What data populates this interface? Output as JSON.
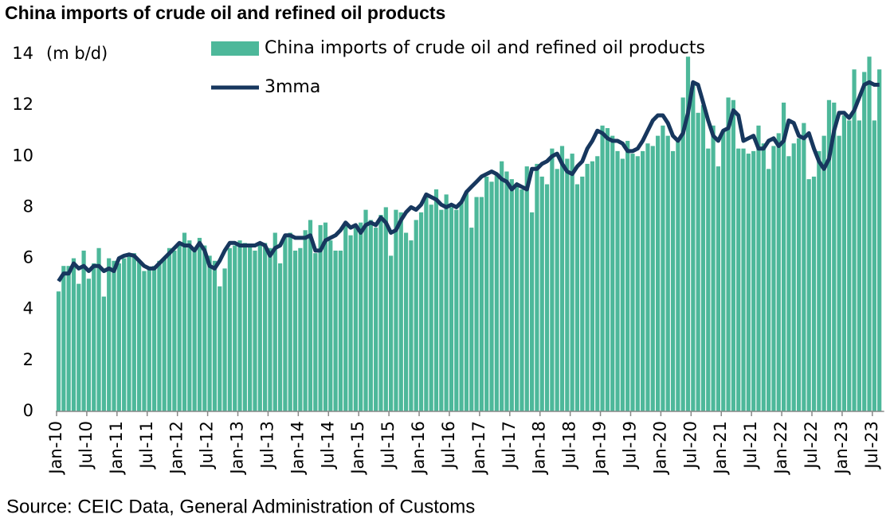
{
  "chart_data": {
    "type": "bar",
    "title": "China imports of crude oil and refined oil products",
    "y_axis_label": "(m b/d)",
    "source": "Source: CEIC Data, General Administration of Customs",
    "categories": [
      "Jan-10",
      null,
      null,
      null,
      null,
      null,
      "Jul-10",
      null,
      null,
      null,
      null,
      null,
      "Jan-11",
      null,
      null,
      null,
      null,
      null,
      "Jul-11",
      null,
      null,
      null,
      null,
      null,
      "Jan-12",
      null,
      null,
      null,
      null,
      null,
      "Jul-12",
      null,
      null,
      null,
      null,
      null,
      "Jan-13",
      null,
      null,
      null,
      null,
      null,
      "Jul-13",
      null,
      null,
      null,
      null,
      null,
      "Jan-14",
      null,
      null,
      null,
      null,
      null,
      "Jul-14",
      null,
      null,
      null,
      null,
      null,
      "Jan-15",
      null,
      null,
      null,
      null,
      null,
      "Jul-15",
      null,
      null,
      null,
      null,
      null,
      "Jan-16",
      null,
      null,
      null,
      null,
      null,
      "Jul-16",
      null,
      null,
      null,
      null,
      null,
      "Jan-17",
      null,
      null,
      null,
      null,
      null,
      "Jul-17",
      null,
      null,
      null,
      null,
      null,
      "Jan-18",
      null,
      null,
      null,
      null,
      null,
      "Jul-18",
      null,
      null,
      null,
      null,
      null,
      "Jan-19",
      null,
      null,
      null,
      null,
      null,
      "Jul-19",
      null,
      null,
      null,
      null,
      null,
      "Jan-20",
      null,
      null,
      null,
      null,
      null,
      "Jul-20",
      null,
      null,
      null,
      null,
      null,
      "Jan-21",
      null,
      null,
      null,
      null,
      null,
      "Jul-21",
      null,
      null,
      null,
      null,
      null,
      "Jan-22",
      null,
      null,
      null,
      null,
      null,
      "Jul-22",
      null,
      null,
      null,
      null,
      null,
      "Jan-23",
      null,
      null,
      null,
      null,
      null,
      "Jul-23",
      null
    ],
    "series": [
      {
        "name": "China imports of crude oil and refined oil products",
        "type": "bar",
        "color": "#4db89a",
        "values": [
          4.7,
          5.7,
          5.7,
          6.0,
          5.0,
          6.3,
          5.2,
          5.8,
          6.4,
          4.5,
          6.0,
          5.9,
          5.8,
          6.0,
          6.1,
          6.2,
          5.9,
          5.5,
          5.6,
          5.7,
          5.9,
          6.0,
          6.4,
          6.3,
          6.6,
          7.0,
          6.7,
          6.3,
          6.8,
          6.5,
          6.1,
          5.9,
          4.9,
          5.6,
          6.4,
          6.5,
          6.7,
          6.6,
          6.5,
          6.3,
          6.6,
          6.6,
          6.4,
          7.0,
          5.8,
          6.9,
          7.0,
          6.3,
          6.4,
          7.1,
          7.5,
          6.2,
          7.3,
          7.4,
          6.7,
          6.3,
          6.3,
          7.3,
          6.9,
          7.2,
          7.4,
          7.9,
          7.5,
          7.2,
          7.7,
          8.0,
          6.1,
          7.9,
          7.8,
          7.0,
          6.7,
          7.5,
          7.8,
          8.5,
          8.1,
          8.7,
          7.9,
          8.5,
          8.0,
          7.9,
          8.2,
          8.6,
          7.2,
          8.4,
          8.4,
          9.2,
          9.0,
          9.3,
          9.8,
          9.4,
          9.1,
          8.8,
          8.7,
          9.6,
          7.8,
          9.7,
          9.2,
          8.9,
          10.3,
          9.5,
          10.4,
          9.9,
          10.1,
          8.9,
          9.2,
          9.7,
          9.8,
          10.0,
          11.2,
          11.1,
          10.8,
          10.2,
          9.9,
          10.6,
          10.1,
          10.0,
          10.2,
          10.5,
          10.4,
          10.8,
          11.2,
          10.8,
          10.2,
          10.6,
          12.3,
          13.9,
          12.9,
          11.7,
          12.0,
          10.3,
          11.2,
          9.6,
          11.0,
          12.3,
          12.2,
          10.3,
          10.3,
          10.1,
          10.2,
          11.2,
          10.5,
          9.5,
          10.4,
          10.9,
          12.1,
          10.0,
          10.5,
          10.7,
          11.3,
          9.1,
          9.2,
          10.2,
          10.8,
          12.2,
          12.1,
          10.8,
          11.6,
          11.4,
          13.4,
          11.4,
          13.3,
          13.9,
          11.4,
          13.4
        ]
      },
      {
        "name": "3mma",
        "type": "line",
        "color": "#17375e",
        "values": [
          5.1,
          5.4,
          5.4,
          5.8,
          5.6,
          5.7,
          5.5,
          5.7,
          5.7,
          5.5,
          5.6,
          5.5,
          6.0,
          6.1,
          6.15,
          6.1,
          5.9,
          5.7,
          5.6,
          5.6,
          5.8,
          6.0,
          6.2,
          6.4,
          6.6,
          6.5,
          6.5,
          6.3,
          6.6,
          6.3,
          5.7,
          5.6,
          5.9,
          6.3,
          6.6,
          6.6,
          6.5,
          6.5,
          6.5,
          6.5,
          6.6,
          6.5,
          6.1,
          6.4,
          6.5,
          6.9,
          6.9,
          6.8,
          6.8,
          6.8,
          6.9,
          6.3,
          6.3,
          6.7,
          6.8,
          6.9,
          7.1,
          7.4,
          7.2,
          7.3,
          7.0,
          7.3,
          7.4,
          7.3,
          7.6,
          7.4,
          7.0,
          7.1,
          7.5,
          7.8,
          8.0,
          7.9,
          8.1,
          8.5,
          8.4,
          8.3,
          8.1,
          8.0,
          8.1,
          8.0,
          8.2,
          8.6,
          8.8,
          9.0,
          9.2,
          9.3,
          9.4,
          9.3,
          9.1,
          9.0,
          8.7,
          8.9,
          8.8,
          8.7,
          9.5,
          9.5,
          9.7,
          9.8,
          10.0,
          10.1,
          9.7,
          9.4,
          9.3,
          9.6,
          9.8,
          10.3,
          10.6,
          11.0,
          10.9,
          10.7,
          10.6,
          10.6,
          10.5,
          10.2,
          10.2,
          10.3,
          10.6,
          11.0,
          11.4,
          11.6,
          11.6,
          11.3,
          10.8,
          10.6,
          10.9,
          11.7,
          12.9,
          12.8,
          12.1,
          11.4,
          10.8,
          10.6,
          11.0,
          11.1,
          11.8,
          11.6,
          10.6,
          10.7,
          10.8,
          10.3,
          10.3,
          10.6,
          10.7,
          10.4,
          10.6,
          11.4,
          11.3,
          10.8,
          10.7,
          10.9,
          10.3,
          9.8,
          9.5,
          9.9,
          11.0,
          11.7,
          11.7,
          11.5,
          11.8,
          12.3,
          12.8,
          12.9,
          12.8,
          12.8
        ]
      }
    ],
    "ylim": [
      0,
      14
    ],
    "yticks": [
      0,
      2,
      4,
      6,
      8,
      10,
      12,
      14
    ],
    "grid": false
  }
}
